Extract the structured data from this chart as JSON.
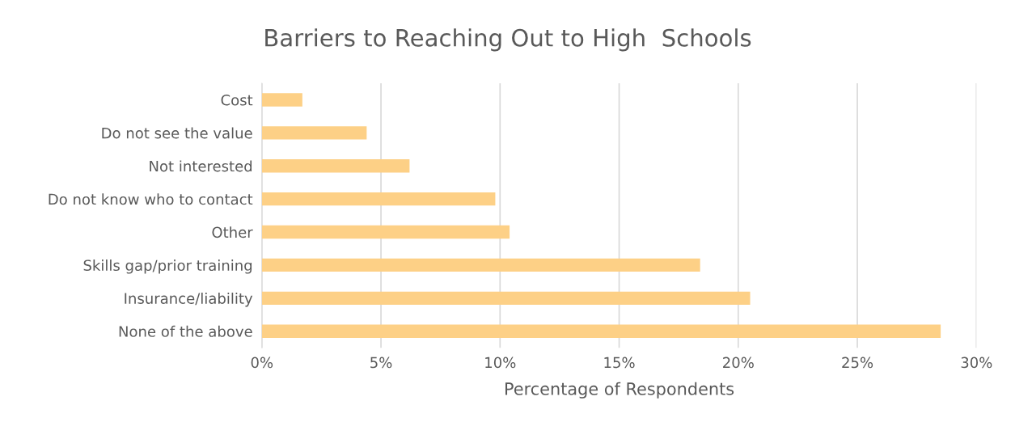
{
  "chart_data": {
    "type": "bar",
    "orientation": "horizontal",
    "title": "Barriers to Reaching Out to High  Schools",
    "xlabel": "Percentage of Respondents",
    "categories": [
      "Cost",
      "Do not see the value",
      "Not interested",
      "Do not know who to contact",
      "Other",
      "Skills gap/prior training",
      "Insurance/liability",
      "None of the above"
    ],
    "values": [
      1.7,
      4.4,
      6.2,
      9.8,
      10.4,
      18.4,
      20.5,
      28.5
    ],
    "color": "#fdd086",
    "xlim": [
      0,
      30
    ],
    "xticks": [
      {
        "value": 0,
        "label": "0%"
      },
      {
        "value": 5,
        "label": "5%"
      },
      {
        "value": 10,
        "label": "10%"
      },
      {
        "value": 15,
        "label": "15%"
      },
      {
        "value": 20,
        "label": "20%"
      },
      {
        "value": 25,
        "label": "25%"
      },
      {
        "value": 30,
        "label": "30%"
      }
    ],
    "grid": "x",
    "legend": false
  }
}
